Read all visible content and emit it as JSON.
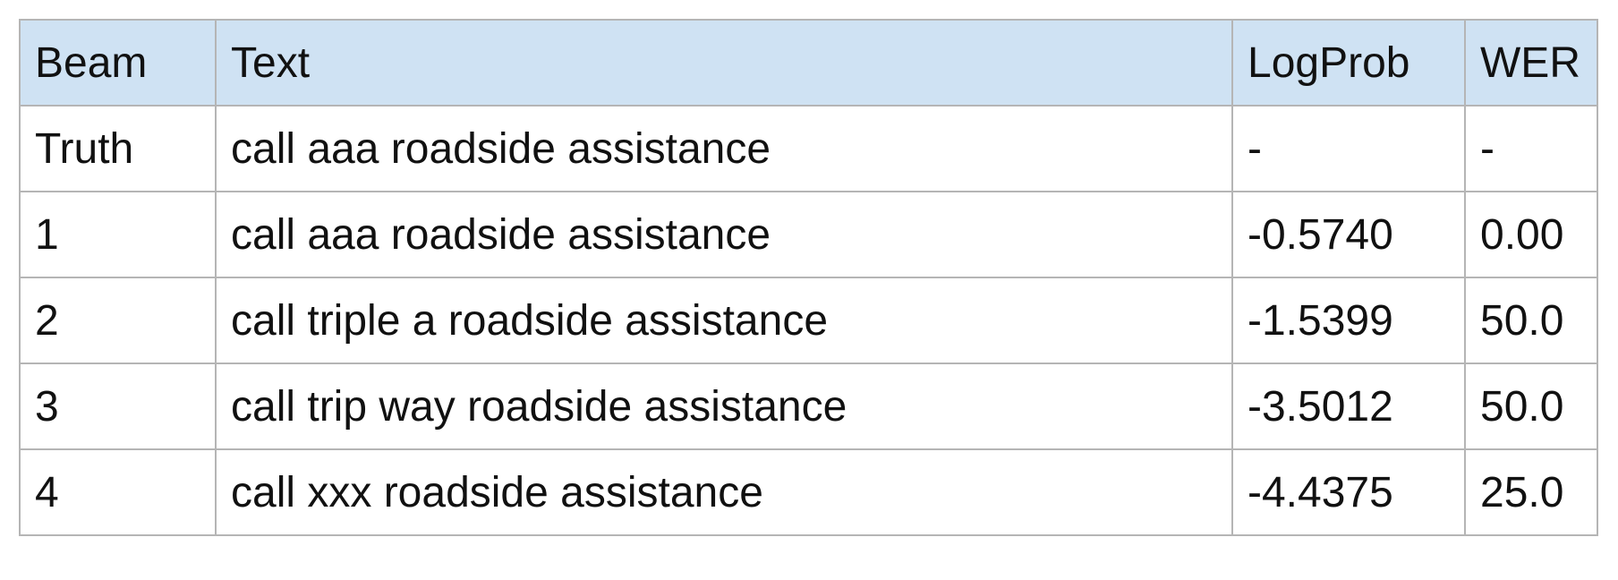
{
  "table": {
    "headers": [
      "Beam",
      "Text",
      "LogProb",
      "WER"
    ],
    "rows": [
      {
        "beam": "Truth",
        "text": "call aaa roadside assistance",
        "logprob": "-",
        "wer": "-"
      },
      {
        "beam": "1",
        "text": "call aaa roadside assistance",
        "logprob": "-0.5740",
        "wer": "0.00"
      },
      {
        "beam": "2",
        "text": "call triple a roadside assistance",
        "logprob": "-1.5399",
        "wer": "50.0"
      },
      {
        "beam": "3",
        "text": "call trip way roadside assistance",
        "logprob": "-3.5012",
        "wer": "50.0"
      },
      {
        "beam": "4",
        "text": "call xxx roadside assistance",
        "logprob": "-4.4375",
        "wer": "25.0"
      }
    ]
  },
  "colors": {
    "header_background": "#cfe2f3",
    "border": "#b5b5b5",
    "text": "#111111"
  }
}
